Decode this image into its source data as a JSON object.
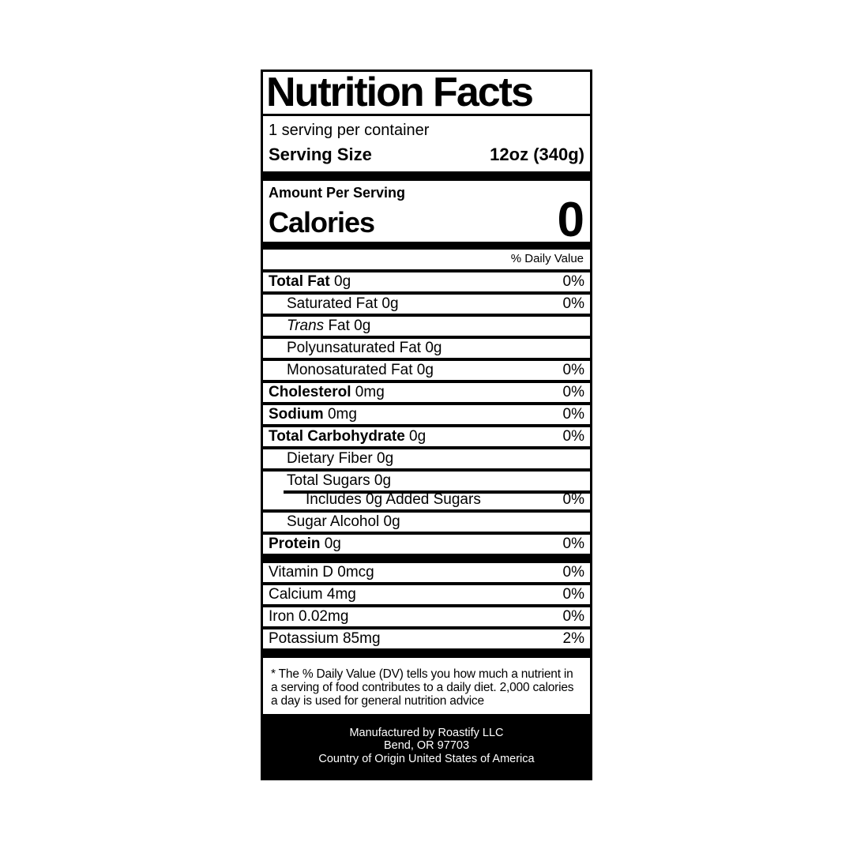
{
  "colors": {
    "ink": "#000000",
    "paper": "#ffffff"
  },
  "label": {
    "title": "Nutrition Facts",
    "servings_per_container": "1 serving per container",
    "serving_size_label": "Serving Size",
    "serving_size_value": "12oz (340g)",
    "amount_per_serving": "Amount Per Serving",
    "calories_label": "Calories",
    "calories_value": "0",
    "daily_value_header": "% Daily Value",
    "nutrients": [
      {
        "bold": "Total Fat",
        "text": " 0g",
        "dv": "0%",
        "indent": 0
      },
      {
        "text": "Saturated Fat 0g",
        "dv": "0%",
        "indent": 1
      },
      {
        "italic": "Trans",
        "text": " Fat 0g",
        "dv": "",
        "indent": 1
      },
      {
        "text": "Polyunsaturated Fat 0g",
        "dv": "",
        "indent": 1
      },
      {
        "text": "Monosaturated Fat 0g",
        "dv": "0%",
        "indent": 1
      },
      {
        "bold": "Cholesterol",
        "text": " 0mg",
        "dv": "0%",
        "indent": 0
      },
      {
        "bold": "Sodium",
        "text": " 0mg",
        "dv": "0%",
        "indent": 0
      },
      {
        "bold": "Total Carbohydrate",
        "text": " 0g",
        "dv": "0%",
        "indent": 0
      },
      {
        "text": "Dietary Fiber 0g",
        "dv": "",
        "indent": 1
      },
      {
        "text": "Total Sugars 0g",
        "dv": "",
        "indent": 1
      },
      {
        "text": "Includes 0g Added Sugars",
        "dv": "0%",
        "indent": 2,
        "partial_rule": true
      },
      {
        "text": "Sugar Alcohol 0g",
        "dv": "",
        "indent": 1
      },
      {
        "bold": "Protein",
        "text": " 0g",
        "dv": "0%",
        "indent": 0
      }
    ],
    "vitamins": [
      {
        "text": "Vitamin D 0mcg",
        "dv": "0%"
      },
      {
        "text": "Calcium 4mg",
        "dv": "0%"
      },
      {
        "text": "Iron 0.02mg",
        "dv": "0%"
      },
      {
        "text": "Potassium 85mg",
        "dv": "2%"
      }
    ],
    "footnote": "* The % Daily Value (DV) tells you how much a nutrient in a serving of food contributes to a daily diet. 2,000 calories a day is used for general nutrition advice",
    "manufacturer_lines": [
      "Manufactured by Roastify LLC",
      "Bend, OR 97703",
      "Country of Origin United States of America"
    ]
  }
}
